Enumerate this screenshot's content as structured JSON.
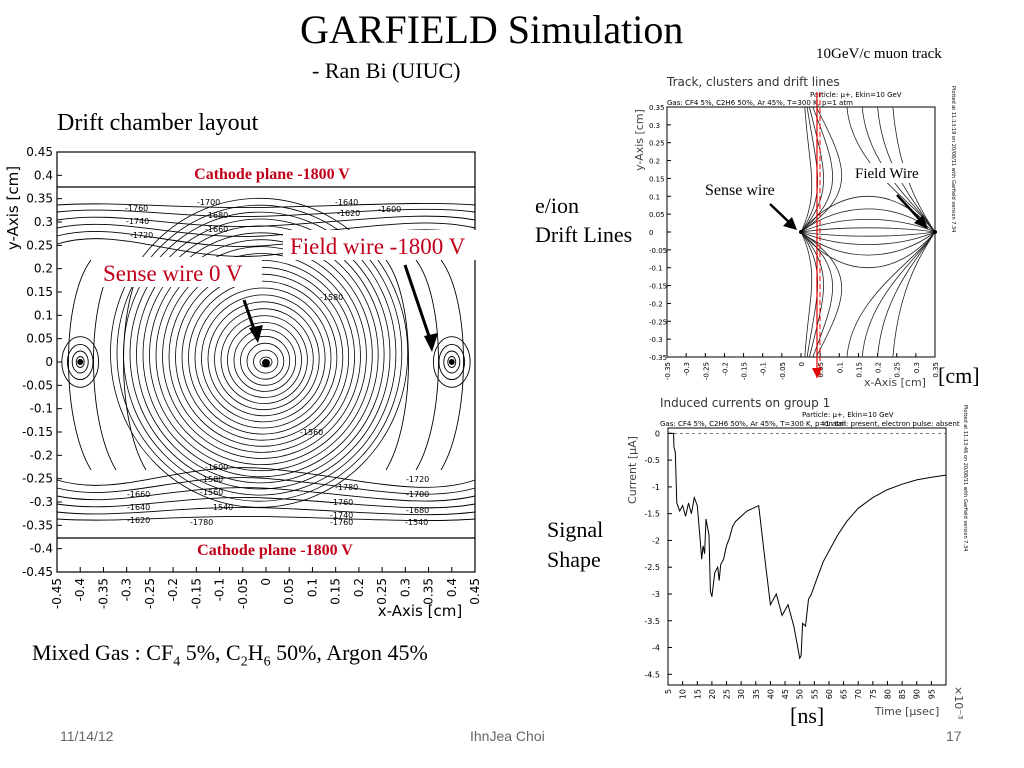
{
  "slide": {
    "title": "GARFIELD Simulation",
    "subtitle": "- Ran Bi (UIUC)",
    "muon_label": "10GeV/c muon track",
    "layout_title": "Drift chamber layout",
    "eion_line1": "e/ion",
    "eion_line2": "Drift Lines",
    "signal_line1": "Signal",
    "signal_line2": "Shape",
    "gas": {
      "prefix": "Mixed Gas : CF",
      "cf_sub": "4",
      "cf_rest": " 5%, C",
      "c_sub": "2",
      "h": "H",
      "h_sub": "6",
      "rest": " 50%, Argon 45%"
    },
    "cm_unit": "[cm]",
    "ns_unit": "[ns]",
    "footer_date": "11/14/12",
    "footer_name": "IhnJea Choi",
    "footer_page": "17"
  },
  "chart_data": [
    {
      "type": "contour",
      "name": "drift-chamber-layout",
      "xlabel": "x-Axis [cm]",
      "ylabel": "y-Axis [cm]",
      "xlim": [
        -0.45,
        0.45
      ],
      "ylim": [
        -0.45,
        0.45
      ],
      "x_ticks": [
        "-0.45",
        "-0.4",
        "-0.35",
        "-0.3",
        "-0.25",
        "-0.2",
        "-0.15",
        "-0.1",
        "-0.05",
        "0",
        "0.05",
        "0.1",
        "0.15",
        "0.2",
        "0.25",
        "0.3",
        "0.35",
        "0.4",
        "0.45"
      ],
      "y_ticks": [
        "0.45",
        "0.4",
        "0.35",
        "0.3",
        "0.25",
        "0.2",
        "0.15",
        "0.1",
        "0.05",
        "0",
        "-0.05",
        "-0.1",
        "-0.15",
        "-0.2",
        "-0.25",
        "-0.3",
        "-0.35",
        "-0.4",
        "-0.45"
      ],
      "y_tick_values": [
        0.45,
        0.4,
        0.35,
        0.3,
        0.25,
        0.2,
        0.15,
        0.1,
        0.05,
        0,
        -0.05,
        -0.1,
        -0.15,
        -0.2,
        -0.25,
        -0.3,
        -0.35,
        -0.4,
        -0.45
      ],
      "x_tick_values": [
        -0.45,
        -0.4,
        -0.35,
        -0.3,
        -0.25,
        -0.2,
        -0.15,
        -0.1,
        -0.05,
        0,
        0.05,
        0.1,
        0.15,
        0.2,
        0.25,
        0.3,
        0.35,
        0.4,
        0.45
      ],
      "cathode_y": [
        0.4,
        -0.4
      ],
      "cathode_top_label": "Cathode plane -1800 V",
      "cathode_bottom_label": "Cathode plane -1800 V",
      "sense_wire": {
        "x": 0,
        "y": 0,
        "label": "Sense wire 0 V"
      },
      "field_wires": [
        {
          "x": -0.4,
          "y": 0
        },
        {
          "x": 0.4,
          "y": 0
        }
      ],
      "field_wire_label": "Field wire -1800 V",
      "contour_labels": [
        "-1760",
        "-1740",
        "-1720",
        "-1700",
        "-1680",
        "-1660",
        "-1640",
        "-1620",
        "-1600",
        "-1580",
        "-1560",
        "-1540",
        "-1780"
      ]
    },
    {
      "type": "line",
      "name": "drift-lines",
      "title": "Track, clusters and drift lines",
      "subtitle": "Particle: μ+, Ekin=10 GeV",
      "gas_note": "Gas: CF4 5%, C2H6 50%, Ar 45%, T=300 K, p=1 atm",
      "side_note": "Plotted at 11:13:19 on 20/08/11 with Garfield version 7.34",
      "xlabel": "x-Axis [cm]",
      "ylabel": "y-Axis [cm]",
      "xlim": [
        -0.35,
        0.35
      ],
      "ylim": [
        -0.35,
        0.35
      ],
      "x_ticks": [
        "-0.35",
        "-0.3",
        "-0.25",
        "-0.2",
        "-0.15",
        "-0.1",
        "-0.05",
        "0",
        "0.05",
        "0.1",
        "0.15",
        "0.2",
        "0.25",
        "0.3",
        "0.35"
      ],
      "y_ticks": [
        "0.35",
        "0.3",
        "0.25",
        "0.2",
        "0.15",
        "0.1",
        "0.05",
        "0",
        "-0.05",
        "-0.1",
        "-0.15",
        "-0.2",
        "-0.25",
        "-0.3",
        "-0.35"
      ],
      "sense_wire": {
        "x": 0,
        "y": 0,
        "label": "Sense wire"
      },
      "field_wire": {
        "x": 0.35,
        "y": 0,
        "label": "Field Wire"
      },
      "muon_track_x": 0.05
    },
    {
      "type": "line",
      "name": "induced-current",
      "title": "Induced currents on group 1",
      "subtitle": "Particle: μ+, Ekin=10 GeV",
      "gas_note": "Gas: CF4 5%, C2H6 50%, Ar 45%, T=300 K, p=1 atm",
      "pulse_note": "Ion tail: present, electron pulse: absent",
      "side_note": "Plotted at 11:13:46 on 20/08/11 with Garfield version 7.34",
      "xlabel": "Time [μsec]",
      "ylabel": "Current [μA]",
      "x_multiplier": "×10⁻³",
      "xlim": [
        5,
        100
      ],
      "ylim": [
        -4.7,
        0.1
      ],
      "x_ticks": [
        "5",
        "10",
        "15",
        "20",
        "25",
        "30",
        "35",
        "40",
        "45",
        "50",
        "55",
        "60",
        "65",
        "70",
        "75",
        "80",
        "85",
        "90",
        "95"
      ],
      "y_ticks": [
        "0",
        "-0.5",
        "-1",
        "-1.5",
        "-2",
        "-2.5",
        "-3",
        "-3.5",
        "-4",
        "-4.5"
      ],
      "series": [
        {
          "x": [
            5,
            6.9,
            7,
            7.5,
            8,
            9,
            10,
            11,
            12,
            13,
            14,
            15,
            16,
            16.5,
            17,
            17.5,
            18,
            19,
            19.5,
            20,
            21,
            22,
            22.5,
            23,
            24,
            25,
            26,
            27,
            28,
            30,
            32,
            34,
            36,
            38,
            40,
            42,
            44,
            46,
            48,
            49,
            50,
            50.5,
            51,
            52,
            53,
            54,
            55,
            56,
            57,
            58,
            60,
            63,
            66,
            70,
            75,
            80,
            85,
            90,
            95,
            100
          ],
          "y": [
            0,
            0,
            -0.25,
            -0.35,
            -1.3,
            -1.45,
            -1.35,
            -1.55,
            -1.3,
            -1.5,
            -1.2,
            -1.35,
            -2.0,
            -2.35,
            -2.1,
            -2.25,
            -1.6,
            -1.9,
            -2.95,
            -3.05,
            -2.6,
            -2.5,
            -2.75,
            -2.45,
            -2.35,
            -2.1,
            -1.95,
            -1.75,
            -1.65,
            -1.55,
            -1.45,
            -1.4,
            -1.35,
            -2.3,
            -3.2,
            -3.0,
            -3.4,
            -3.2,
            -3.6,
            -3.9,
            -4.2,
            -4.15,
            -3.55,
            -3.6,
            -3.1,
            -3.0,
            -2.85,
            -2.7,
            -2.55,
            -2.4,
            -2.2,
            -1.9,
            -1.65,
            -1.4,
            -1.2,
            -1.05,
            -0.95,
            -0.87,
            -0.82,
            -0.78
          ]
        }
      ]
    }
  ]
}
